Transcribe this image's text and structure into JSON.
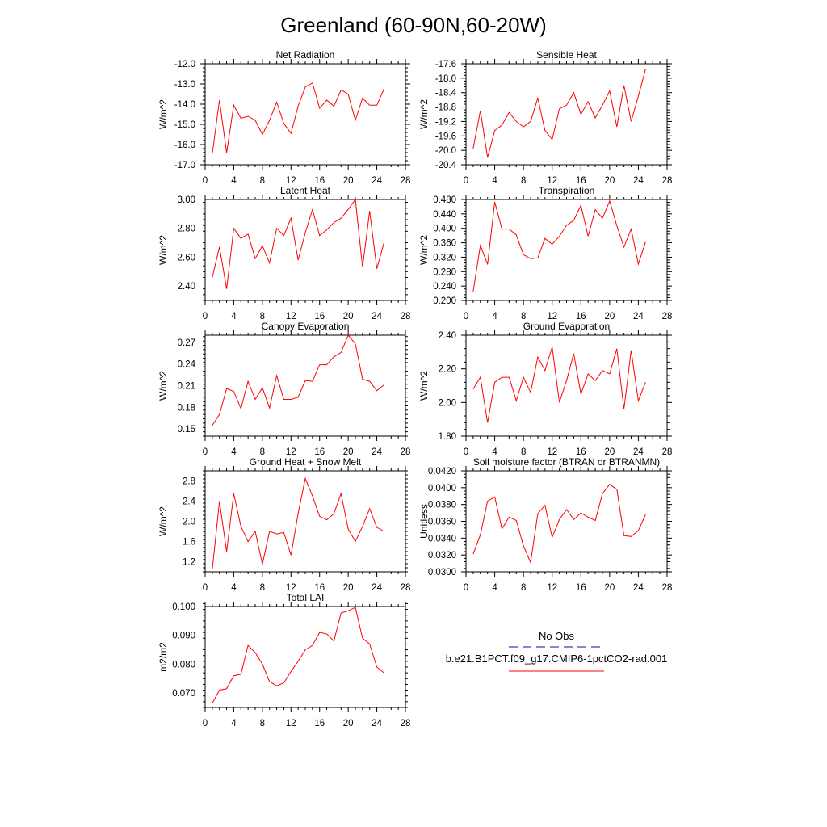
{
  "title": "Greenland (60-90N,60-20W)",
  "colors": {
    "model": "#ff0000",
    "obs": "#3b3bc4",
    "axis": "#000000"
  },
  "legend": {
    "obs_label": "No Obs",
    "model_label": "b.e21.B1PCT.f09_g17.CMIP6-1pctCO2-rad.001"
  },
  "chart_data": [
    {
      "type": "line",
      "title": "Net Radiation",
      "ylabel": "W/m^2",
      "xlim": [
        0,
        28
      ],
      "ylim": [
        -17.0,
        -12.0
      ],
      "xticks": [
        0,
        4,
        8,
        12,
        16,
        20,
        24,
        28
      ],
      "yticks": [
        -17.0,
        -16.0,
        -15.0,
        -14.0,
        -13.0,
        -12.0
      ],
      "ytick_labels": [
        "-17.0",
        "-16.0",
        "-15.0",
        "-14.0",
        "-13.0",
        "-12.0"
      ],
      "grid": false,
      "x": [
        1,
        2,
        3,
        4,
        5,
        6,
        7,
        8,
        9,
        10,
        11,
        12,
        13,
        14,
        15,
        16,
        17,
        18,
        19,
        20,
        21,
        22,
        23,
        24,
        25
      ],
      "values": [
        -16.45,
        -13.8,
        -16.4,
        -14.05,
        -14.7,
        -14.6,
        -14.8,
        -15.5,
        -14.8,
        -13.9,
        -14.95,
        -15.45,
        -14.1,
        -13.15,
        -12.95,
        -14.2,
        -13.8,
        -14.1,
        -13.3,
        -13.5,
        -14.8,
        -13.7,
        -14.05,
        -14.05,
        -13.25
      ]
    },
    {
      "type": "line",
      "title": "Sensible Heat",
      "ylabel": "W/m^2",
      "xlim": [
        0,
        28
      ],
      "ylim": [
        -20.4,
        -17.6
      ],
      "xticks": [
        0,
        4,
        8,
        12,
        16,
        20,
        24,
        28
      ],
      "yticks": [
        -20.4,
        -20.0,
        -19.6,
        -19.2,
        -18.8,
        -18.4,
        -18.0,
        -17.6
      ],
      "ytick_labels": [
        "-20.4",
        "-20.0",
        "-19.6",
        "-19.2",
        "-18.8",
        "-18.4",
        "-18.0",
        "-17.6"
      ],
      "grid": false,
      "x": [
        1,
        2,
        3,
        4,
        5,
        6,
        7,
        8,
        9,
        10,
        11,
        12,
        13,
        14,
        15,
        16,
        17,
        18,
        19,
        20,
        21,
        22,
        23,
        24,
        25
      ],
      "values": [
        -19.95,
        -18.9,
        -20.2,
        -19.45,
        -19.3,
        -18.95,
        -19.2,
        -19.35,
        -19.2,
        -18.55,
        -19.45,
        -19.7,
        -18.85,
        -18.75,
        -18.4,
        -19.0,
        -18.65,
        -19.1,
        -18.75,
        -18.35,
        -19.35,
        -18.2,
        -19.2,
        -18.5,
        -17.75
      ]
    },
    {
      "type": "line",
      "title": "Latent Heat",
      "ylabel": "W/m^2",
      "xlim": [
        0,
        28
      ],
      "ylim": [
        2.3,
        3.0
      ],
      "xticks": [
        0,
        4,
        8,
        12,
        16,
        20,
        24,
        28
      ],
      "yticks": [
        2.4,
        2.6,
        2.8,
        3.0
      ],
      "ytick_labels": [
        "2.40",
        "2.60",
        "2.80",
        "3.00"
      ],
      "grid": false,
      "x": [
        1,
        2,
        3,
        4,
        5,
        6,
        7,
        8,
        9,
        10,
        11,
        12,
        13,
        14,
        15,
        16,
        17,
        18,
        19,
        20,
        21,
        22,
        23,
        24,
        25
      ],
      "values": [
        2.46,
        2.67,
        2.38,
        2.8,
        2.73,
        2.76,
        2.59,
        2.68,
        2.56,
        2.8,
        2.75,
        2.87,
        2.58,
        2.77,
        2.93,
        2.75,
        2.79,
        2.84,
        2.87,
        2.93,
        3.0,
        2.53,
        2.92,
        2.52,
        2.7
      ]
    },
    {
      "type": "line",
      "title": "Transpiration",
      "ylabel": "W/m^2",
      "xlim": [
        0,
        28
      ],
      "ylim": [
        0.2,
        0.48
      ],
      "xticks": [
        0,
        4,
        8,
        12,
        16,
        20,
        24,
        28
      ],
      "yticks": [
        0.2,
        0.24,
        0.28,
        0.32,
        0.36,
        0.4,
        0.44,
        0.48
      ],
      "ytick_labels": [
        "0.200",
        "0.240",
        "0.280",
        "0.320",
        "0.360",
        "0.400",
        "0.440",
        "0.480"
      ],
      "grid": false,
      "x": [
        1,
        2,
        3,
        4,
        5,
        6,
        7,
        8,
        9,
        10,
        11,
        12,
        13,
        14,
        15,
        16,
        17,
        18,
        19,
        20,
        21,
        22,
        23,
        24,
        25
      ],
      "values": [
        0.225,
        0.353,
        0.3,
        0.473,
        0.398,
        0.398,
        0.382,
        0.327,
        0.316,
        0.318,
        0.372,
        0.356,
        0.378,
        0.408,
        0.422,
        0.464,
        0.378,
        0.452,
        0.428,
        0.476,
        0.407,
        0.348,
        0.398,
        0.301,
        0.362
      ]
    },
    {
      "type": "line",
      "title": "Canopy Evaporation",
      "ylabel": "W/m^2",
      "xlim": [
        0,
        28
      ],
      "ylim": [
        0.14,
        0.28
      ],
      "xticks": [
        0,
        4,
        8,
        12,
        16,
        20,
        24,
        28
      ],
      "yticks": [
        0.15,
        0.18,
        0.21,
        0.24,
        0.27
      ],
      "ytick_labels": [
        "0.15",
        "0.18",
        "0.21",
        "0.24",
        "0.27"
      ],
      "grid": false,
      "x": [
        1,
        2,
        3,
        4,
        5,
        6,
        7,
        8,
        9,
        10,
        11,
        12,
        13,
        14,
        15,
        16,
        17,
        18,
        19,
        20,
        21,
        22,
        23,
        24,
        25
      ],
      "values": [
        0.155,
        0.17,
        0.206,
        0.202,
        0.178,
        0.216,
        0.191,
        0.207,
        0.179,
        0.224,
        0.191,
        0.191,
        0.194,
        0.217,
        0.216,
        0.239,
        0.239,
        0.25,
        0.256,
        0.28,
        0.268,
        0.219,
        0.216,
        0.203,
        0.211
      ]
    },
    {
      "type": "line",
      "title": "Ground Evaporation",
      "ylabel": "W/m^2",
      "xlim": [
        0,
        28
      ],
      "ylim": [
        1.8,
        2.4
      ],
      "xticks": [
        0,
        4,
        8,
        12,
        16,
        20,
        24,
        28
      ],
      "yticks": [
        1.8,
        2.0,
        2.2,
        2.4
      ],
      "ytick_labels": [
        "1.80",
        "2.00",
        "2.20",
        "2.40"
      ],
      "grid": false,
      "x": [
        1,
        2,
        3,
        4,
        5,
        6,
        7,
        8,
        9,
        10,
        11,
        12,
        13,
        14,
        15,
        16,
        17,
        18,
        19,
        20,
        21,
        22,
        23,
        24,
        25
      ],
      "values": [
        2.08,
        2.15,
        1.88,
        2.12,
        2.15,
        2.15,
        2.01,
        2.15,
        2.06,
        2.27,
        2.19,
        2.33,
        2.0,
        2.13,
        2.29,
        2.05,
        2.17,
        2.13,
        2.19,
        2.17,
        2.32,
        1.96,
        2.31,
        2.01,
        2.12
      ]
    },
    {
      "type": "line",
      "title": "Ground Heat + Snow Melt",
      "ylabel": "W/m^2",
      "xlim": [
        0,
        28
      ],
      "ylim": [
        1.0,
        3.0
      ],
      "xticks": [
        0,
        4,
        8,
        12,
        16,
        20,
        24,
        28
      ],
      "yticks": [
        1.2,
        1.6,
        2.0,
        2.4,
        2.8
      ],
      "ytick_labels": [
        "1.2",
        "1.6",
        "2.0",
        "2.4",
        "2.8"
      ],
      "grid": false,
      "x": [
        1,
        2,
        3,
        4,
        5,
        6,
        7,
        8,
        9,
        10,
        11,
        12,
        13,
        14,
        15,
        16,
        17,
        18,
        19,
        20,
        21,
        22,
        23,
        24,
        25
      ],
      "values": [
        1.05,
        2.4,
        1.4,
        2.55,
        1.9,
        1.6,
        1.8,
        1.15,
        1.8,
        1.75,
        1.78,
        1.33,
        2.15,
        2.85,
        2.5,
        2.1,
        2.03,
        2.15,
        2.55,
        1.85,
        1.6,
        1.9,
        2.25,
        1.88,
        1.8
      ]
    },
    {
      "type": "line",
      "title": "Soil moisture factor (BTRAN or BTRANMN)",
      "ylabel": "Unitless",
      "xlim": [
        0,
        28
      ],
      "ylim": [
        0.03,
        0.042
      ],
      "xticks": [
        0,
        4,
        8,
        12,
        16,
        20,
        24,
        28
      ],
      "yticks": [
        0.03,
        0.032,
        0.034,
        0.036,
        0.038,
        0.04,
        0.042
      ],
      "ytick_labels": [
        "0.0300",
        "0.0320",
        "0.0340",
        "0.0360",
        "0.0380",
        "0.0400",
        "0.0420"
      ],
      "grid": false,
      "x": [
        1,
        2,
        3,
        4,
        5,
        6,
        7,
        8,
        9,
        10,
        11,
        12,
        13,
        14,
        15,
        16,
        17,
        18,
        19,
        20,
        21,
        22,
        23,
        24,
        25
      ],
      "values": [
        0.0321,
        0.0344,
        0.0384,
        0.0389,
        0.0351,
        0.0365,
        0.0361,
        0.0331,
        0.0311,
        0.0369,
        0.0379,
        0.0341,
        0.0362,
        0.0374,
        0.0362,
        0.037,
        0.0365,
        0.0361,
        0.0393,
        0.0404,
        0.0398,
        0.0343,
        0.0342,
        0.0349,
        0.0368
      ]
    },
    {
      "type": "line",
      "title": "Total LAI",
      "ylabel": "m2/m2",
      "xlim": [
        0,
        28
      ],
      "ylim": [
        0.065,
        0.1
      ],
      "xticks": [
        0,
        4,
        8,
        12,
        16,
        20,
        24,
        28
      ],
      "yticks": [
        0.07,
        0.08,
        0.09,
        0.1
      ],
      "ytick_labels": [
        "0.070",
        "0.080",
        "0.090",
        "0.100"
      ],
      "grid": false,
      "x": [
        1,
        2,
        3,
        4,
        5,
        6,
        7,
        8,
        9,
        10,
        11,
        12,
        13,
        14,
        15,
        16,
        17,
        18,
        19,
        20,
        21,
        22,
        23,
        24,
        25
      ],
      "values": [
        0.0665,
        0.071,
        0.0715,
        0.076,
        0.0765,
        0.0865,
        0.084,
        0.08,
        0.074,
        0.0725,
        0.0735,
        0.0775,
        0.081,
        0.085,
        0.0865,
        0.091,
        0.0905,
        0.088,
        0.0978,
        0.0985,
        0.0997,
        0.089,
        0.087,
        0.079,
        0.077
      ]
    }
  ]
}
